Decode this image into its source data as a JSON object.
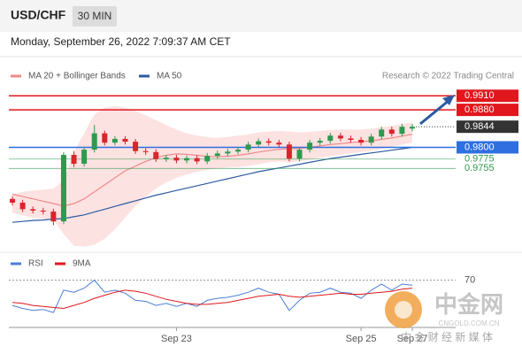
{
  "header": {
    "symbol": "USD/CHF",
    "interval": "30 MIN",
    "date": "Monday, September 26, 2022 7:09:37 AM CET"
  },
  "watermark": {
    "brand": "中金网",
    "site": "CNGOLD.COM.CN",
    "slogan": "中 金 财 经 新 媒 体"
  },
  "chart_data": [
    {
      "type": "candlestick",
      "attribution": "Research © 2022 Trading Central",
      "ylim": [
        0.958,
        0.9935
      ],
      "up_color": "#2e9a4f",
      "down_color": "#d9252b",
      "open": [
        0.969,
        0.9682,
        0.9668,
        0.9665,
        0.9663,
        0.9642,
        0.9784,
        0.9765,
        0.9795,
        0.983,
        0.981,
        0.9818,
        0.9812,
        0.9792,
        0.979,
        0.9775,
        0.9778,
        0.9772,
        0.9777,
        0.977,
        0.9782,
        0.9787,
        0.9791,
        0.9795,
        0.9806,
        0.9813,
        0.981,
        0.9806,
        0.9776,
        0.9795,
        0.981,
        0.9814,
        0.9825,
        0.9819,
        0.9816,
        0.981,
        0.9823,
        0.9838,
        0.9829,
        0.984
      ],
      "high": [
        0.9696,
        0.9688,
        0.9674,
        0.9671,
        0.9669,
        0.979,
        0.9792,
        0.9801,
        0.9848,
        0.9836,
        0.9824,
        0.9824,
        0.9818,
        0.9798,
        0.9796,
        0.9784,
        0.9784,
        0.9783,
        0.9783,
        0.9788,
        0.9793,
        0.9797,
        0.9801,
        0.9812,
        0.9819,
        0.9819,
        0.9816,
        0.9812,
        0.9801,
        0.9816,
        0.982,
        0.9831,
        0.9831,
        0.9825,
        0.9822,
        0.9829,
        0.9844,
        0.9844,
        0.985,
        0.985
      ],
      "low": [
        0.9676,
        0.9662,
        0.9659,
        0.9657,
        0.9634,
        0.9636,
        0.9758,
        0.9759,
        0.9789,
        0.9804,
        0.9804,
        0.9806,
        0.9786,
        0.9784,
        0.9769,
        0.9769,
        0.9766,
        0.9766,
        0.9764,
        0.9764,
        0.9776,
        0.9781,
        0.9785,
        0.9789,
        0.98,
        0.9804,
        0.98,
        0.977,
        0.977,
        0.9789,
        0.9804,
        0.9808,
        0.9813,
        0.981,
        0.9804,
        0.9804,
        0.9817,
        0.9823,
        0.9823,
        0.9834
      ],
      "close": [
        0.9682,
        0.9668,
        0.9665,
        0.9663,
        0.9642,
        0.9784,
        0.9765,
        0.9795,
        0.983,
        0.981,
        0.9818,
        0.9812,
        0.9792,
        0.979,
        0.9775,
        0.9778,
        0.9772,
        0.9777,
        0.977,
        0.9782,
        0.9787,
        0.9791,
        0.9795,
        0.9806,
        0.9813,
        0.981,
        0.9806,
        0.9776,
        0.9795,
        0.981,
        0.9814,
        0.9825,
        0.9819,
        0.9816,
        0.981,
        0.9823,
        0.9838,
        0.9829,
        0.9844,
        0.9844
      ],
      "series": [
        {
          "name": "MA 20 + Bollinger Bands",
          "color": "#f08a8a",
          "band_color": "#fde2e2",
          "values": [
            0.97,
            0.9695,
            0.969,
            0.9685,
            0.968,
            0.9675,
            0.968,
            0.969,
            0.9705,
            0.972,
            0.9735,
            0.975,
            0.976,
            0.977,
            0.9778,
            0.9783,
            0.9786,
            0.9785,
            0.9783,
            0.9781,
            0.978,
            0.9781,
            0.9783,
            0.9786,
            0.979,
            0.9793,
            0.9796,
            0.9797,
            0.9798,
            0.98,
            0.9803,
            0.9806,
            0.9808,
            0.981,
            0.9812,
            0.9814,
            0.9817,
            0.982,
            0.9824,
            0.9828
          ],
          "upper": [
            0.97,
            0.9705,
            0.9708,
            0.971,
            0.9712,
            0.973,
            0.979,
            0.983,
            0.987,
            0.9885,
            0.9888,
            0.9885,
            0.9878,
            0.9868,
            0.9858,
            0.9848,
            0.9838,
            0.983,
            0.9825,
            0.9822,
            0.982,
            0.9822,
            0.9825,
            0.9828,
            0.9832,
            0.9834,
            0.9835,
            0.9834,
            0.9832,
            0.9833,
            0.9835,
            0.9837,
            0.9838,
            0.9838,
            0.9838,
            0.984,
            0.9843,
            0.9846,
            0.985,
            0.9853
          ],
          "lower": [
            0.966,
            0.9655,
            0.965,
            0.9648,
            0.9645,
            0.9615,
            0.959,
            0.9588,
            0.9592,
            0.9605,
            0.9625,
            0.965,
            0.9675,
            0.9695,
            0.9712,
            0.9725,
            0.9735,
            0.9742,
            0.9748,
            0.9752,
            0.9755,
            0.9757,
            0.9758,
            0.976,
            0.9764,
            0.9768,
            0.977,
            0.9768,
            0.977,
            0.9774,
            0.9778,
            0.9781,
            0.9784,
            0.9787,
            0.979,
            0.9793,
            0.9797,
            0.9801,
            0.9806,
            0.981
          ]
        },
        {
          "name": "MA 50",
          "color": "#2c5aa0",
          "values": [
            0.964,
            0.9642,
            0.9644,
            0.9645,
            0.9647,
            0.9648,
            0.9652,
            0.9656,
            0.9662,
            0.9668,
            0.9674,
            0.968,
            0.9686,
            0.9692,
            0.9698,
            0.9703,
            0.9708,
            0.9713,
            0.9718,
            0.9723,
            0.9728,
            0.9733,
            0.9738,
            0.9743,
            0.9748,
            0.9752,
            0.9756,
            0.976,
            0.9764,
            0.9768,
            0.9772,
            0.9776,
            0.9779,
            0.9782,
            0.9785,
            0.9788,
            0.9791,
            0.9794,
            0.9797,
            0.98
          ]
        }
      ],
      "levels": [
        {
          "value": 0.991,
          "label": "0.9910",
          "color": "#e0171d",
          "box": true
        },
        {
          "value": 0.988,
          "label": "0.9880",
          "color": "#e0171d",
          "box": true
        },
        {
          "value": 0.9844,
          "label": "0.9844",
          "color": "#333333",
          "box": true
        },
        {
          "value": 0.98,
          "label": "0.9800",
          "color": "#2f6fe0",
          "box": true
        },
        {
          "value": 0.9775,
          "label": "0.9775",
          "color": "#2e9a4f",
          "box": false
        },
        {
          "value": 0.9755,
          "label": "0.9755",
          "color": "#2e9a4f",
          "box": false
        }
      ]
    },
    {
      "type": "line",
      "ylim": [
        25,
        80
      ],
      "yticks": [
        70
      ],
      "categories": [
        null,
        null,
        null,
        null,
        null,
        null,
        null,
        null,
        null,
        null,
        null,
        null,
        null,
        null,
        null,
        null,
        "Sep 23",
        null,
        null,
        null,
        null,
        null,
        null,
        null,
        null,
        null,
        null,
        null,
        null,
        null,
        null,
        null,
        null,
        null,
        "Sep 25",
        null,
        null,
        null,
        null,
        "Sep 27"
      ],
      "series": [
        {
          "name": "RSI",
          "color": "#4a7fd6",
          "values": [
            45,
            42,
            40,
            41,
            38,
            60,
            58,
            62,
            70,
            58,
            60,
            57,
            50,
            49,
            45,
            47,
            44,
            47,
            44,
            50,
            52,
            53,
            55,
            58,
            62,
            58,
            56,
            40,
            50,
            57,
            58,
            62,
            58,
            57,
            52,
            60,
            66,
            60,
            66,
            65
          ]
        },
        {
          "name": "9MA",
          "color": "#e0171d",
          "values": [
            48,
            47,
            45,
            44,
            43,
            42,
            45,
            48,
            52,
            55,
            58,
            60,
            59,
            57,
            54,
            51,
            49,
            47,
            46,
            46,
            47,
            48,
            50,
            52,
            54,
            55,
            56,
            54,
            53,
            54,
            55,
            56,
            57,
            56,
            56,
            57,
            58,
            59,
            61,
            62
          ]
        }
      ]
    }
  ]
}
